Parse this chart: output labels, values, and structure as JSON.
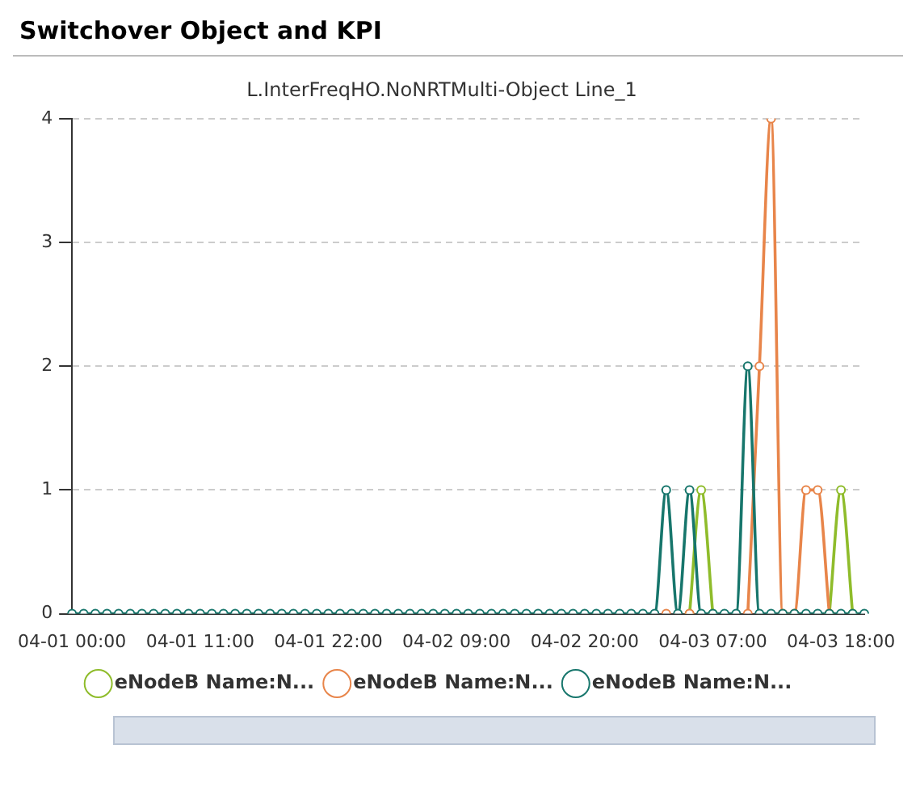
{
  "chart_data": {
    "type": "line",
    "title": "Switchover Object and KPI",
    "subtitle": "L.InterFreqHO.NoNRTMulti-Object Line_1",
    "categories": [
      "04-01 00:00",
      null,
      null,
      null,
      null,
      null,
      null,
      null,
      null,
      null,
      null,
      "04-01 11:00",
      null,
      null,
      null,
      null,
      null,
      null,
      null,
      null,
      null,
      null,
      "04-01 22:00",
      null,
      null,
      null,
      null,
      null,
      null,
      null,
      null,
      null,
      null,
      "04-02 09:00",
      null,
      null,
      null,
      null,
      null,
      null,
      null,
      null,
      null,
      null,
      "04-02 20:00",
      null,
      null,
      null,
      null,
      null,
      null,
      null,
      null,
      null,
      null,
      "04-03 07:00",
      null,
      null,
      null,
      null,
      null,
      null,
      null,
      null,
      null,
      null,
      "04-03 18:00",
      null,
      null
    ],
    "series": [
      {
        "name": "eNodeB Name:N...",
        "color": "#8fbc2b",
        "values": [
          null,
          null,
          null,
          null,
          null,
          null,
          null,
          null,
          null,
          null,
          null,
          null,
          null,
          null,
          null,
          null,
          null,
          null,
          null,
          null,
          null,
          null,
          null,
          null,
          null,
          null,
          null,
          null,
          null,
          null,
          null,
          null,
          null,
          null,
          null,
          null,
          null,
          null,
          null,
          null,
          null,
          null,
          null,
          null,
          null,
          null,
          null,
          null,
          null,
          null,
          null,
          null,
          null,
          0,
          1,
          0,
          null,
          null,
          null,
          null,
          null,
          null,
          null,
          null,
          null,
          0,
          1,
          0,
          null
        ]
      },
      {
        "name": "eNodeB Name:N...",
        "color": "#e8854a",
        "values": [
          null,
          null,
          null,
          null,
          null,
          null,
          null,
          null,
          null,
          null,
          null,
          null,
          null,
          null,
          null,
          null,
          null,
          null,
          null,
          null,
          null,
          null,
          null,
          null,
          null,
          null,
          null,
          null,
          null,
          null,
          null,
          null,
          null,
          null,
          null,
          null,
          null,
          null,
          null,
          null,
          null,
          null,
          null,
          null,
          null,
          null,
          null,
          null,
          null,
          null,
          null,
          0,
          null,
          0,
          null,
          null,
          null,
          null,
          0,
          2,
          4,
          0,
          0,
          1,
          1,
          0,
          null,
          null,
          null
        ]
      },
      {
        "name": "eNodeB Name:N...",
        "color": "#17766c",
        "values": [
          0,
          0,
          0,
          0,
          0,
          0,
          0,
          0,
          0,
          0,
          0,
          0,
          0,
          0,
          0,
          0,
          0,
          0,
          0,
          0,
          0,
          0,
          0,
          0,
          0,
          0,
          0,
          0,
          0,
          0,
          0,
          0,
          0,
          0,
          0,
          0,
          0,
          0,
          0,
          0,
          0,
          0,
          0,
          0,
          0,
          0,
          0,
          0,
          0,
          0,
          0,
          1,
          0,
          1,
          0,
          0,
          0,
          0,
          2,
          0,
          0,
          0,
          0,
          0,
          0,
          0,
          0,
          0,
          0
        ]
      }
    ],
    "ylim": [
      0,
      4
    ],
    "yticks": [
      0,
      1,
      2,
      3,
      4
    ],
    "grid": "y",
    "legend": "bottom",
    "marker": "circle",
    "line_style": "solid"
  }
}
